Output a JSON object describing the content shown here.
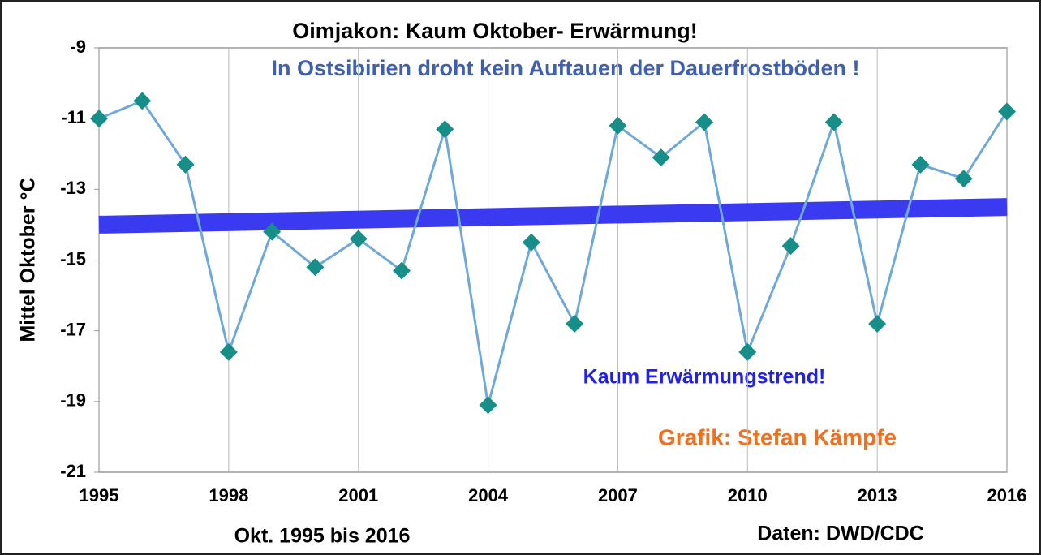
{
  "chart_data": {
    "type": "line",
    "title": "Oimjakon: Kaum Oktober- Erwärmung!",
    "subtitle": "In Ostsibirien droht kein Auftauen der Dauerfrostböden !",
    "y_label": "Mittel Oktober °C",
    "x_label": "Okt. 1995 bis 2016",
    "source": "Daten: DWD/CDC",
    "annotations": [
      "Kaum Erwärmungstrend!",
      "Grafik: Stefan Kämpfe"
    ],
    "x": [
      1995,
      1996,
      1997,
      1998,
      1999,
      2000,
      2001,
      2002,
      2003,
      2004,
      2005,
      2006,
      2007,
      2008,
      2009,
      2010,
      2011,
      2012,
      2013,
      2014,
      2015,
      2016
    ],
    "series": [
      {
        "color": "#6fa8dc",
        "marker_color": "#178f88",
        "values": [
          -11.0,
          -10.5,
          -12.3,
          -17.6,
          -14.2,
          -15.2,
          -14.4,
          -15.3,
          -11.3,
          -19.1,
          -14.5,
          -16.8,
          -11.2,
          -12.1,
          -11.1,
          -17.6,
          -14.6,
          -11.1,
          -16.8,
          -12.3,
          -12.7,
          -10.8
        ]
      }
    ],
    "trend": {
      "x": [
        1995,
        2016
      ],
      "values": [
        -14.0,
        -13.5
      ],
      "color": "#3a3af0"
    },
    "xlim": [
      1995,
      2016
    ],
    "xticks": [
      1995,
      1998,
      2001,
      2004,
      2007,
      2010,
      2013,
      2016
    ],
    "ylim": [
      -21,
      -9
    ],
    "yticks": [
      -21,
      -19,
      -17,
      -15,
      -13,
      -11,
      -9
    ],
    "grid": "x"
  }
}
